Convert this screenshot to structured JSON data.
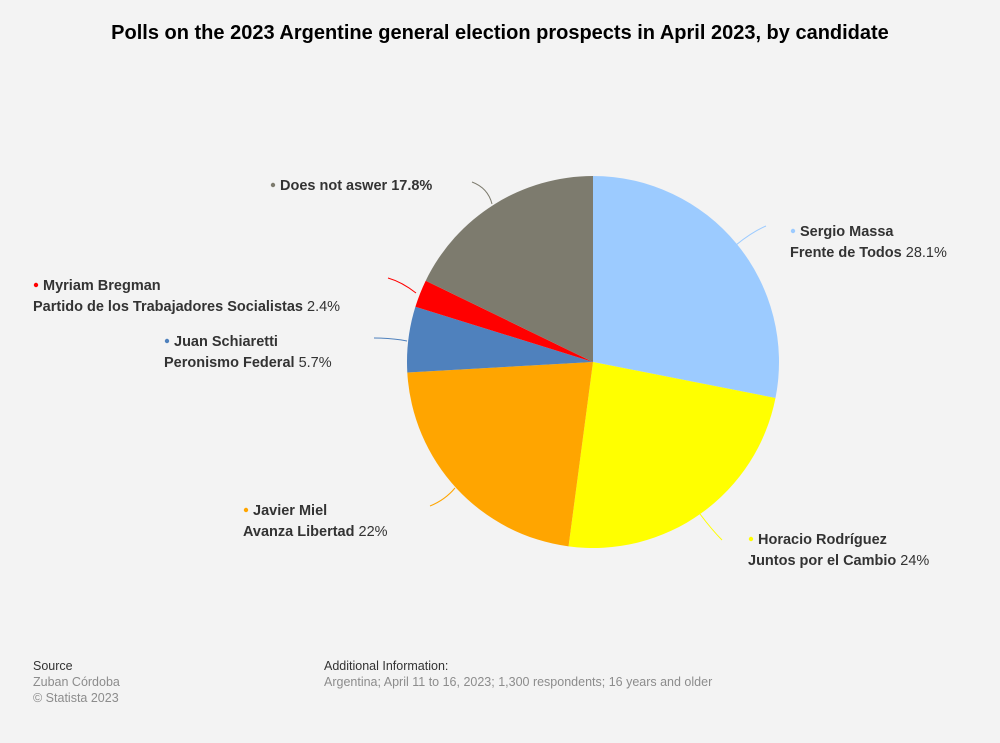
{
  "chart_data": {
    "type": "pie",
    "title": "Polls on the 2023 Argentine general election prospects in April 2023, by candidate",
    "slices": [
      {
        "name": "Sergio Massa",
        "party": "Frente de Todos",
        "value": 28.1,
        "label": "28.1%",
        "color": "#9ccbff"
      },
      {
        "name": "Horacio Rodríguez",
        "party": "Juntos por el Cambio",
        "value": 24,
        "label": "24%",
        "color": "#ffff00"
      },
      {
        "name": "Javier Miel",
        "party": "Avanza Libertad",
        "value": 22,
        "label": "22%",
        "color": "#ffa500"
      },
      {
        "name": "Juan Schiaretti",
        "party": "Peronismo Federal",
        "value": 5.7,
        "label": "5.7%",
        "color": "#4f81bd"
      },
      {
        "name": "Myriam Bregman",
        "party": "Partido de los Trabajadores Socialistas",
        "value": 2.4,
        "label": "2.4%",
        "color": "#ff0000"
      },
      {
        "name": "Does not aswer",
        "party": "",
        "value": 17.8,
        "label": "17.8%",
        "color": "#7d7b6e"
      }
    ]
  },
  "footer": {
    "source_heading": "Source",
    "source_name": "Zuban Córdoba",
    "copyright": "© Statista 2023",
    "additional_heading": "Additional Information:",
    "additional_text": "Argentina; April 11 to 16, 2023; 1,300 respondents; 16 years and older"
  }
}
